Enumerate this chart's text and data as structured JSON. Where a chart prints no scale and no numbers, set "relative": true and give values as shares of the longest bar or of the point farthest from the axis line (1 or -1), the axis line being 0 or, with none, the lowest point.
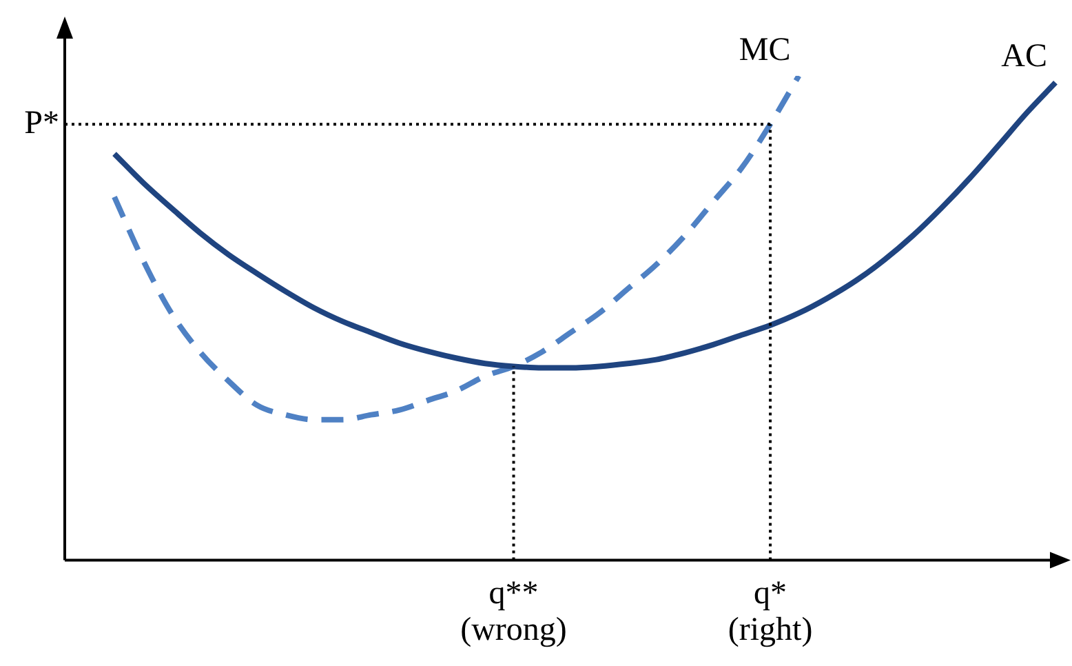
{
  "chart_data": {
    "type": "line",
    "relative": true,
    "marker": "none",
    "categories": [
      null,
      null,
      null,
      null,
      null,
      null,
      null,
      null,
      null,
      null,
      null,
      null,
      null,
      null,
      "q**\n(wrong)",
      null,
      null,
      null,
      null,
      null,
      null,
      null,
      null,
      "q*\n(right)",
      null,
      null,
      null,
      null,
      null,
      null,
      null,
      null,
      null,
      null
    ],
    "series": [
      {
        "name": "AC",
        "color": "#1f4480",
        "line_style": "solid",
        "values": [
          0.839,
          0.78,
          0.727,
          0.676,
          0.631,
          0.592,
          0.555,
          0.521,
          0.493,
          0.47,
          0.448,
          0.431,
          0.417,
          0.406,
          0.4,
          0.397,
          0.397,
          0.4,
          0.406,
          0.414,
          0.428,
          0.445,
          0.465,
          0.485,
          0.51,
          0.541,
          0.577,
          0.62,
          0.67,
          0.727,
          0.789,
          0.856,
          0.924,
          0.986
        ]
      },
      {
        "name": "MC",
        "color": "#4f81c4",
        "line_style": "dashed",
        "values": [
          0.75,
          0.62,
          0.51,
          0.43,
          0.37,
          0.32,
          0.3,
          0.29,
          0.29,
          0.3,
          0.31,
          0.33,
          0.35,
          0.38,
          0.4,
          0.43,
          0.47,
          0.51,
          0.56,
          0.61,
          0.67,
          0.74,
          0.81,
          0.9,
          1,
          null,
          null,
          null,
          null,
          null,
          null,
          null,
          null,
          null
        ]
      }
    ],
    "ref_lines": [
      {
        "axis": "x",
        "value": "q**\n(wrong)",
        "color": "#000000",
        "line_style": "dotted"
      },
      {
        "axis": "x",
        "value": "q*\n(right)",
        "color": "#000000",
        "line_style": "dotted"
      },
      {
        "axis": "y",
        "value": 0.9,
        "label": "P*",
        "color": "#000000",
        "line_style": "dotted"
      }
    ]
  }
}
